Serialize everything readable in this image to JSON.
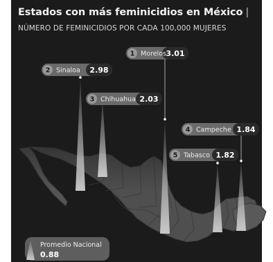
{
  "title": "Estados con más feminicidios en México",
  "title_bar": "|",
  "subtitle": "NÚMERO DE FEMINICIDIOS POR CADA 100,000 MUJERES",
  "colors": {
    "background": "#1b1b1b",
    "map_fill": "#4f4f4f",
    "map_border": "#3a3a3a",
    "label_pill": "#6a6a6a",
    "rank_circle": "#9a9a9a",
    "spike_fill": "#bdbdbd",
    "text_light": "#f0f0f0"
  },
  "chart_data": {
    "type": "bar",
    "title": "Estados con más feminicidios en México",
    "subtitle": "NÚMERO DE FEMINICIDIOS POR CADA 100,000 MUJERES",
    "unit": "feminicidios por cada 100,000 mujeres",
    "series": [
      {
        "rank": "1",
        "state": "Morelos",
        "value": 3.01,
        "value_label": "3.01"
      },
      {
        "rank": "2",
        "state": "Sinaloa",
        "value": 2.98,
        "value_label": "2.98"
      },
      {
        "rank": "3",
        "state": "Chihuahua",
        "value": 2.03,
        "value_label": "2.03"
      },
      {
        "rank": "4",
        "state": "Campeche",
        "value": 1.84,
        "value_label": "1.84"
      },
      {
        "rank": "5",
        "state": "Tabasco",
        "value": 1.82,
        "value_label": "1.82"
      }
    ],
    "national_average": {
      "label": "Promedio Nacional",
      "value": 0.88,
      "value_label": "0.88"
    }
  }
}
